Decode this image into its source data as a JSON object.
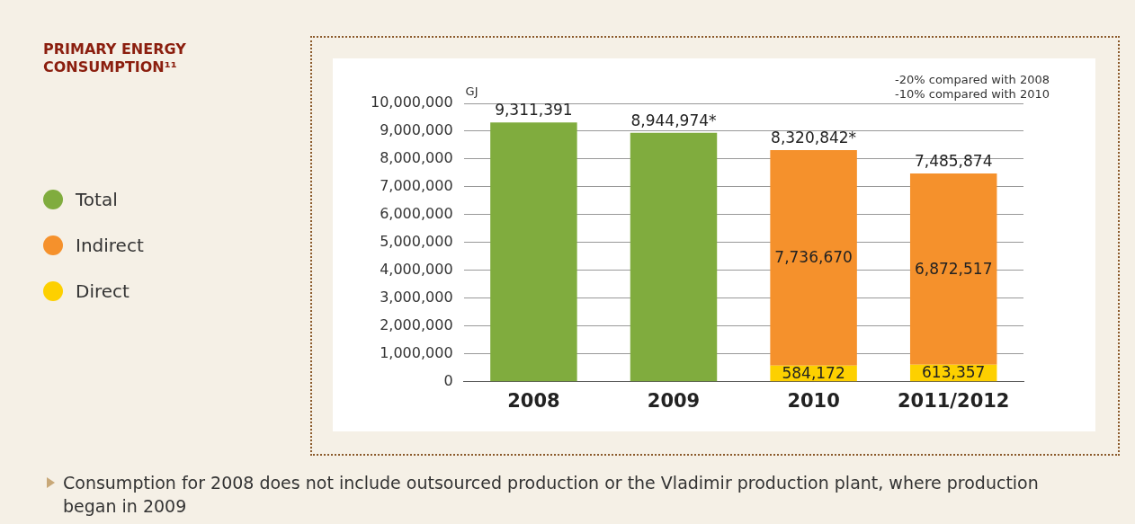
{
  "chart_data": {
    "type": "bar",
    "title": "PRIMARY ENERGY CONSUMPTION¹¹",
    "ylabel": "GJ",
    "categories": [
      "2008",
      "2009",
      "2010",
      "2011/2012"
    ],
    "stacked": true,
    "series": [
      {
        "name": "Direct",
        "color": "#fdd000",
        "values": [
          null,
          null,
          584172,
          613357
        ],
        "value_labels": [
          null,
          null,
          "584,172",
          "613,357"
        ]
      },
      {
        "name": "Indirect",
        "color": "#f5912c",
        "values": [
          null,
          null,
          7736670,
          6872517
        ],
        "value_labels": [
          null,
          null,
          "7,736,670",
          "6,872,517"
        ]
      },
      {
        "name": "Total",
        "color": "#80ac3e",
        "values": [
          9311391,
          8944974,
          null,
          null
        ]
      }
    ],
    "totals": [
      "9,311,391",
      "8,944,974*",
      "8,320,842*",
      "7,485,874"
    ],
    "ylim": [
      0,
      10000000
    ],
    "yticks": [
      {
        "value": 0,
        "label": "0"
      },
      {
        "value": 1000000,
        "label": "1,000,000"
      },
      {
        "value": 2000000,
        "label": "2,000,000"
      },
      {
        "value": 3000000,
        "label": "3,000,000"
      },
      {
        "value": 4000000,
        "label": "4,000,000"
      },
      {
        "value": 5000000,
        "label": "5,000,000"
      },
      {
        "value": 6000000,
        "label": "6,000,000"
      },
      {
        "value": 7000000,
        "label": "7,000,000"
      },
      {
        "value": 8000000,
        "label": "8,000,000"
      },
      {
        "value": 9000000,
        "label": "9,000,000"
      },
      {
        "value": 10000000,
        "label": "10,000,000"
      }
    ],
    "grid": "y",
    "legend": "left",
    "annotations": [
      "-20% compared with 2008",
      "-10% compared with 2010",
      "Consumption for 2008 does not include outsourced production or the Vladimir production plant, where production began in 2009"
    ]
  }
}
